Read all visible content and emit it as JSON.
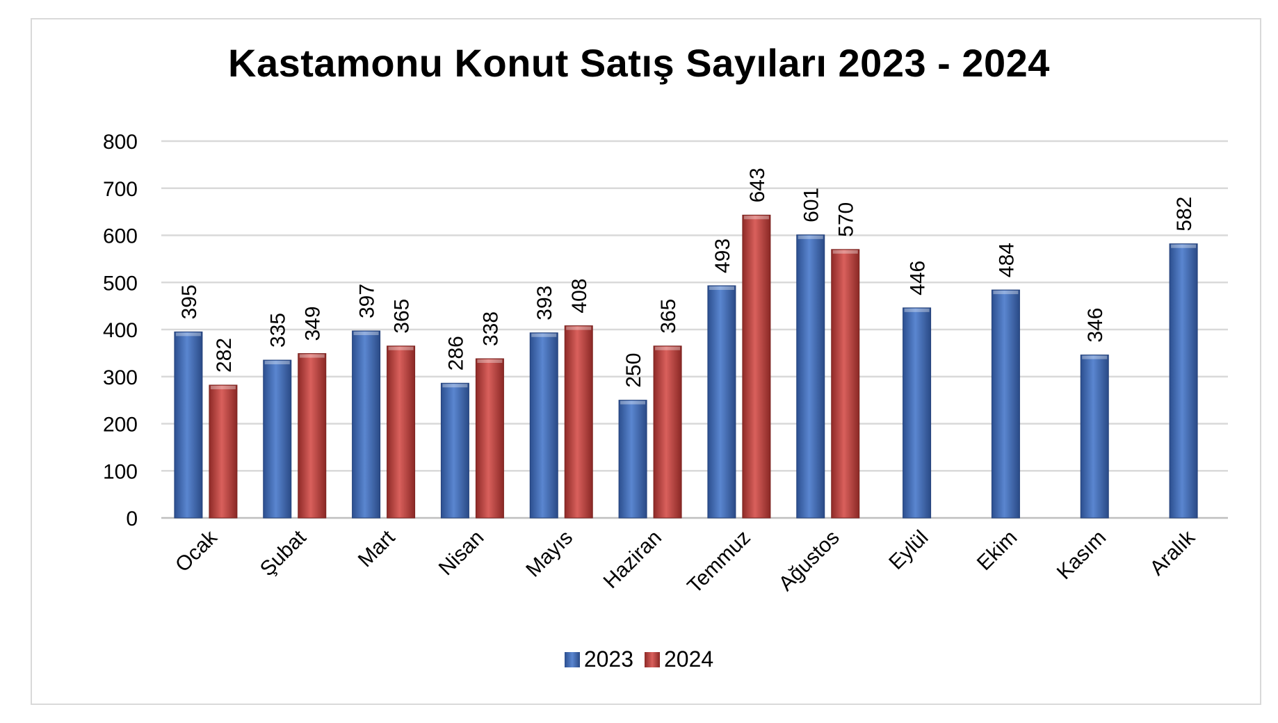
{
  "chart_data": {
    "type": "bar",
    "title": "Kastamonu Konut Satış Sayıları 2023 - 2024",
    "xlabel": "",
    "ylabel": "",
    "ylim": [
      0,
      800
    ],
    "yticks": [
      0,
      100,
      200,
      300,
      400,
      500,
      600,
      700,
      800
    ],
    "grid": true,
    "legend_position": "bottom",
    "categories": [
      "Ocak",
      "Şubat",
      "Mart",
      "Nisan",
      "Mayıs",
      "Haziran",
      "Temmuz",
      "Ağustos",
      "Eylül",
      "Ekim",
      "Kasım",
      "Aralık"
    ],
    "series": [
      {
        "name": "2023",
        "color": "#4472c4",
        "values": [
          395,
          335,
          397,
          286,
          393,
          250,
          493,
          601,
          446,
          484,
          346,
          582
        ]
      },
      {
        "name": "2024",
        "color": "#c0504d",
        "values": [
          282,
          349,
          365,
          338,
          408,
          365,
          643,
          570,
          null,
          null,
          null,
          null
        ]
      }
    ]
  }
}
